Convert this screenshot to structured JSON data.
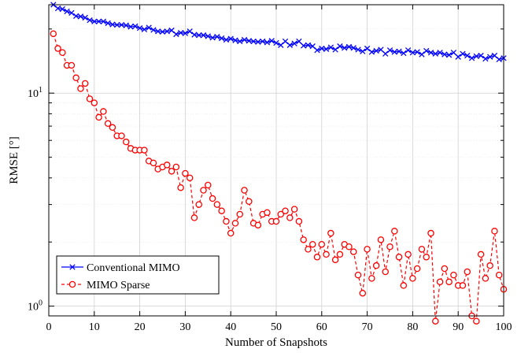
{
  "chart_data": {
    "type": "line",
    "xlabel": "Number of Snapshots",
    "ylabel": "RMSE [°]",
    "xlim": [
      0,
      100
    ],
    "ylim": [
      0.9,
      26
    ],
    "yscale": "log",
    "grid": true,
    "legend_position": "bottom-left",
    "x_ticks": [
      0,
      10,
      20,
      30,
      40,
      50,
      60,
      70,
      80,
      90,
      100
    ],
    "y_ticks": [
      {
        "value": 1,
        "base": "10",
        "exp": "0"
      },
      {
        "value": 10,
        "base": "10",
        "exp": "1"
      }
    ],
    "x": [
      1,
      2,
      3,
      4,
      5,
      6,
      7,
      8,
      9,
      10,
      11,
      12,
      13,
      14,
      15,
      16,
      17,
      18,
      19,
      20,
      21,
      22,
      23,
      24,
      25,
      26,
      27,
      28,
      29,
      30,
      31,
      32,
      33,
      34,
      35,
      36,
      37,
      38,
      39,
      40,
      41,
      42,
      43,
      44,
      45,
      46,
      47,
      48,
      49,
      50,
      51,
      52,
      53,
      54,
      55,
      56,
      57,
      58,
      59,
      60,
      61,
      62,
      63,
      64,
      65,
      66,
      67,
      68,
      69,
      70,
      71,
      72,
      73,
      74,
      75,
      76,
      77,
      78,
      79,
      80,
      81,
      82,
      83,
      84,
      85,
      86,
      87,
      88,
      89,
      90,
      91,
      92,
      93,
      94,
      95,
      96,
      97,
      98,
      99,
      100
    ],
    "series": [
      {
        "name": "Conventional MIMO",
        "color": "#0000ff",
        "marker": "x",
        "line_style": "solid",
        "values": [
          26.0,
          25.0,
          24.8,
          24.2,
          23.8,
          23.0,
          22.9,
          22.6,
          22.0,
          21.7,
          21.7,
          21.7,
          21.3,
          21.0,
          20.9,
          20.9,
          20.8,
          20.5,
          20.6,
          20.2,
          19.9,
          20.3,
          19.8,
          19.5,
          19.4,
          19.5,
          19.7,
          18.9,
          19.2,
          19.1,
          19.5,
          18.8,
          18.7,
          18.7,
          18.5,
          18.2,
          18.4,
          18.1,
          17.8,
          18.0,
          17.7,
          17.5,
          17.8,
          17.6,
          17.5,
          17.4,
          17.5,
          17.3,
          17.6,
          17.2,
          16.8,
          17.5,
          16.8,
          17.1,
          17.5,
          16.7,
          16.8,
          16.6,
          15.9,
          16.2,
          16.1,
          16.4,
          16.0,
          16.6,
          16.3,
          16.5,
          16.3,
          16.0,
          15.7,
          16.2,
          15.6,
          15.8,
          16.0,
          15.3,
          15.9,
          15.6,
          15.7,
          15.4,
          15.9,
          15.5,
          15.6,
          15.2,
          15.8,
          15.5,
          15.3,
          15.5,
          15.2,
          15.1,
          15.5,
          14.8,
          15.3,
          15.0,
          14.6,
          14.9,
          15.0,
          14.5,
          14.8,
          15.0,
          14.4,
          14.6
        ]
      },
      {
        "name": "MIMO Sparse",
        "color": "#ff0000",
        "marker": "o",
        "line_style": "dashed",
        "values": [
          19.0,
          16.2,
          15.5,
          13.5,
          13.5,
          11.8,
          10.5,
          11.1,
          9.4,
          9.0,
          7.7,
          8.2,
          7.2,
          6.9,
          6.3,
          6.3,
          5.9,
          5.5,
          5.4,
          5.4,
          5.4,
          4.8,
          4.7,
          4.4,
          4.5,
          4.6,
          4.3,
          4.5,
          3.6,
          4.2,
          4.0,
          2.6,
          3.0,
          3.5,
          3.7,
          3.2,
          3.0,
          2.8,
          2.5,
          2.2,
          2.45,
          2.7,
          3.5,
          3.1,
          2.45,
          2.4,
          2.7,
          2.75,
          2.5,
          2.5,
          2.7,
          2.8,
          2.6,
          2.85,
          2.5,
          2.05,
          1.85,
          1.95,
          1.7,
          1.95,
          1.75,
          2.2,
          1.65,
          1.75,
          1.95,
          1.9,
          1.8,
          1.4,
          1.15,
          1.85,
          1.35,
          1.55,
          2.05,
          1.45,
          1.9,
          2.25,
          1.7,
          1.25,
          1.75,
          1.35,
          1.5,
          1.85,
          1.7,
          2.2,
          0.85,
          1.3,
          1.5,
          1.3,
          1.4,
          1.25,
          1.25,
          1.45,
          0.9,
          0.85,
          1.75,
          1.35,
          1.55,
          2.25,
          1.4,
          1.2
        ]
      }
    ]
  }
}
